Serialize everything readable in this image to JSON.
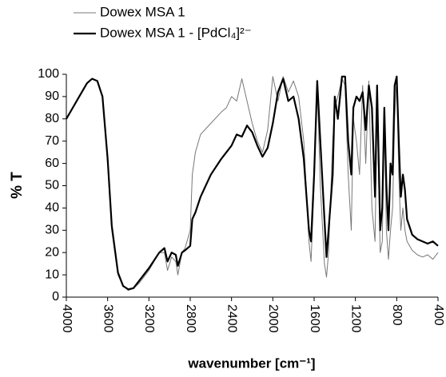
{
  "chart_data": {
    "type": "line",
    "xlabel": "wavenumber [cm⁻¹]",
    "ylabel": "% T",
    "xlim": [
      4000,
      400
    ],
    "ylim": [
      0,
      100
    ],
    "xticks": [
      4000,
      3600,
      3200,
      2800,
      2400,
      2000,
      1600,
      1200,
      800,
      400
    ],
    "yticks": [
      0,
      10,
      20,
      30,
      40,
      50,
      60,
      70,
      80,
      90,
      100
    ],
    "grid": false,
    "legend": "top-left",
    "x": [
      4000,
      3900,
      3800,
      3750,
      3700,
      3650,
      3600,
      3560,
      3500,
      3450,
      3400,
      3350,
      3300,
      3200,
      3100,
      3050,
      3020,
      2980,
      2940,
      2920,
      2880,
      2850,
      2800,
      2780,
      2750,
      2700,
      2600,
      2500,
      2450,
      2400,
      2350,
      2300,
      2250,
      2200,
      2150,
      2100,
      2050,
      2000,
      1950,
      1900,
      1850,
      1800,
      1750,
      1700,
      1650,
      1630,
      1600,
      1570,
      1540,
      1500,
      1480,
      1460,
      1420,
      1400,
      1370,
      1330,
      1300,
      1270,
      1240,
      1220,
      1190,
      1160,
      1130,
      1100,
      1070,
      1040,
      1010,
      990,
      960,
      940,
      920,
      900,
      880,
      860,
      840,
      820,
      800,
      780,
      760,
      740,
      720,
      700,
      650,
      600,
      550,
      500,
      450,
      400
    ],
    "series": [
      {
        "name": "Dowex MSA 1",
        "color": "#777777",
        "width": 1,
        "values": [
          80,
          88,
          96,
          98,
          97,
          90,
          60,
          30,
          10,
          5,
          3,
          4,
          6,
          12,
          20,
          20,
          12,
          18,
          16,
          10,
          20,
          22,
          30,
          55,
          65,
          73,
          78,
          83,
          85,
          90,
          88,
          98,
          88,
          78,
          70,
          65,
          75,
          99,
          88,
          99,
          92,
          97,
          90,
          70,
          25,
          16,
          50,
          96,
          50,
          15,
          9,
          20,
          70,
          85,
          90,
          98,
          95,
          55,
          30,
          80,
          70,
          55,
          95,
          60,
          97,
          40,
          25,
          85,
          20,
          25,
          80,
          30,
          17,
          30,
          40,
          80,
          99,
          55,
          30,
          40,
          30,
          25,
          21,
          19,
          18,
          19,
          17,
          20
        ]
      },
      {
        "name": "Dowex MSA 1 - [PdCl₄]²⁻",
        "color": "#000000",
        "width": 2.2,
        "values": [
          80,
          88,
          96,
          98,
          97,
          90,
          62,
          32,
          11,
          5,
          3.5,
          4,
          7,
          13,
          20,
          22,
          16,
          20,
          19,
          14,
          20,
          21,
          23,
          35,
          38,
          45,
          55,
          62,
          65,
          68,
          73,
          72,
          77,
          74,
          68,
          63,
          67,
          78,
          92,
          98,
          88,
          90,
          80,
          62,
          30,
          25,
          55,
          97,
          70,
          35,
          18,
          30,
          55,
          90,
          80,
          99,
          99,
          70,
          55,
          85,
          90,
          88,
          92,
          75,
          95,
          85,
          45,
          95,
          30,
          40,
          85,
          50,
          30,
          60,
          55,
          95,
          99,
          70,
          45,
          55,
          48,
          35,
          28,
          26,
          25,
          24,
          25,
          23
        ]
      }
    ]
  }
}
